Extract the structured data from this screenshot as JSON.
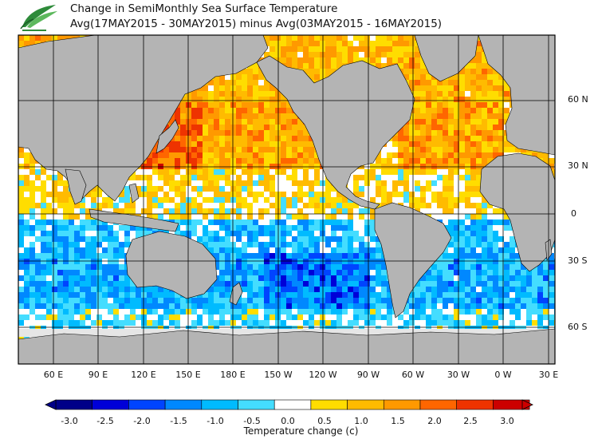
{
  "header": {
    "title_line1": "Change in SemiMonthly Sea Surface Temperature",
    "title_line2": "Avg(17MAY2015 - 30MAY2015) minus Avg(03MAY2015 - 16MAY2015)",
    "logo_icon": "agency-leaf-logo-icon"
  },
  "map": {
    "lon_labels": [
      "60 E",
      "90 E",
      "120 E",
      "150 E",
      "180 E",
      "150 W",
      "120 W",
      "90 W",
      "60 W",
      "30 W",
      "0 W",
      "30 E"
    ],
    "lat_labels": [
      "60 N",
      "30 N",
      "0",
      "30 S",
      "60 S"
    ],
    "colors": {
      "land": "#b4b4b4",
      "ice": "#e6e6e6",
      "frame": "#000000",
      "grid": "#000000"
    },
    "anomaly_regions_c": {
      "northwest_pacific": 2.0,
      "northeast_pacific": 1.2,
      "north_atlantic": 1.3,
      "tropics": 0.4,
      "southern_ocean": -1.0,
      "south_central_pacific": -1.6
    }
  },
  "legend": {
    "title": "Temperature change  (c)",
    "ticks": [
      "-3.0",
      "-2.5",
      "-2.0",
      "-1.5",
      "-1.0",
      "-0.5",
      "0.0",
      "0.5",
      "1.0",
      "1.5",
      "2.0",
      "2.5",
      "3.0"
    ],
    "colors": [
      "#000088",
      "#0000d8",
      "#0044ff",
      "#0088ff",
      "#00bbff",
      "#44ddff",
      "#ffffff",
      "#ffdd00",
      "#ffbb00",
      "#ff9900",
      "#ff6600",
      "#ee3300",
      "#cc0000"
    ]
  }
}
